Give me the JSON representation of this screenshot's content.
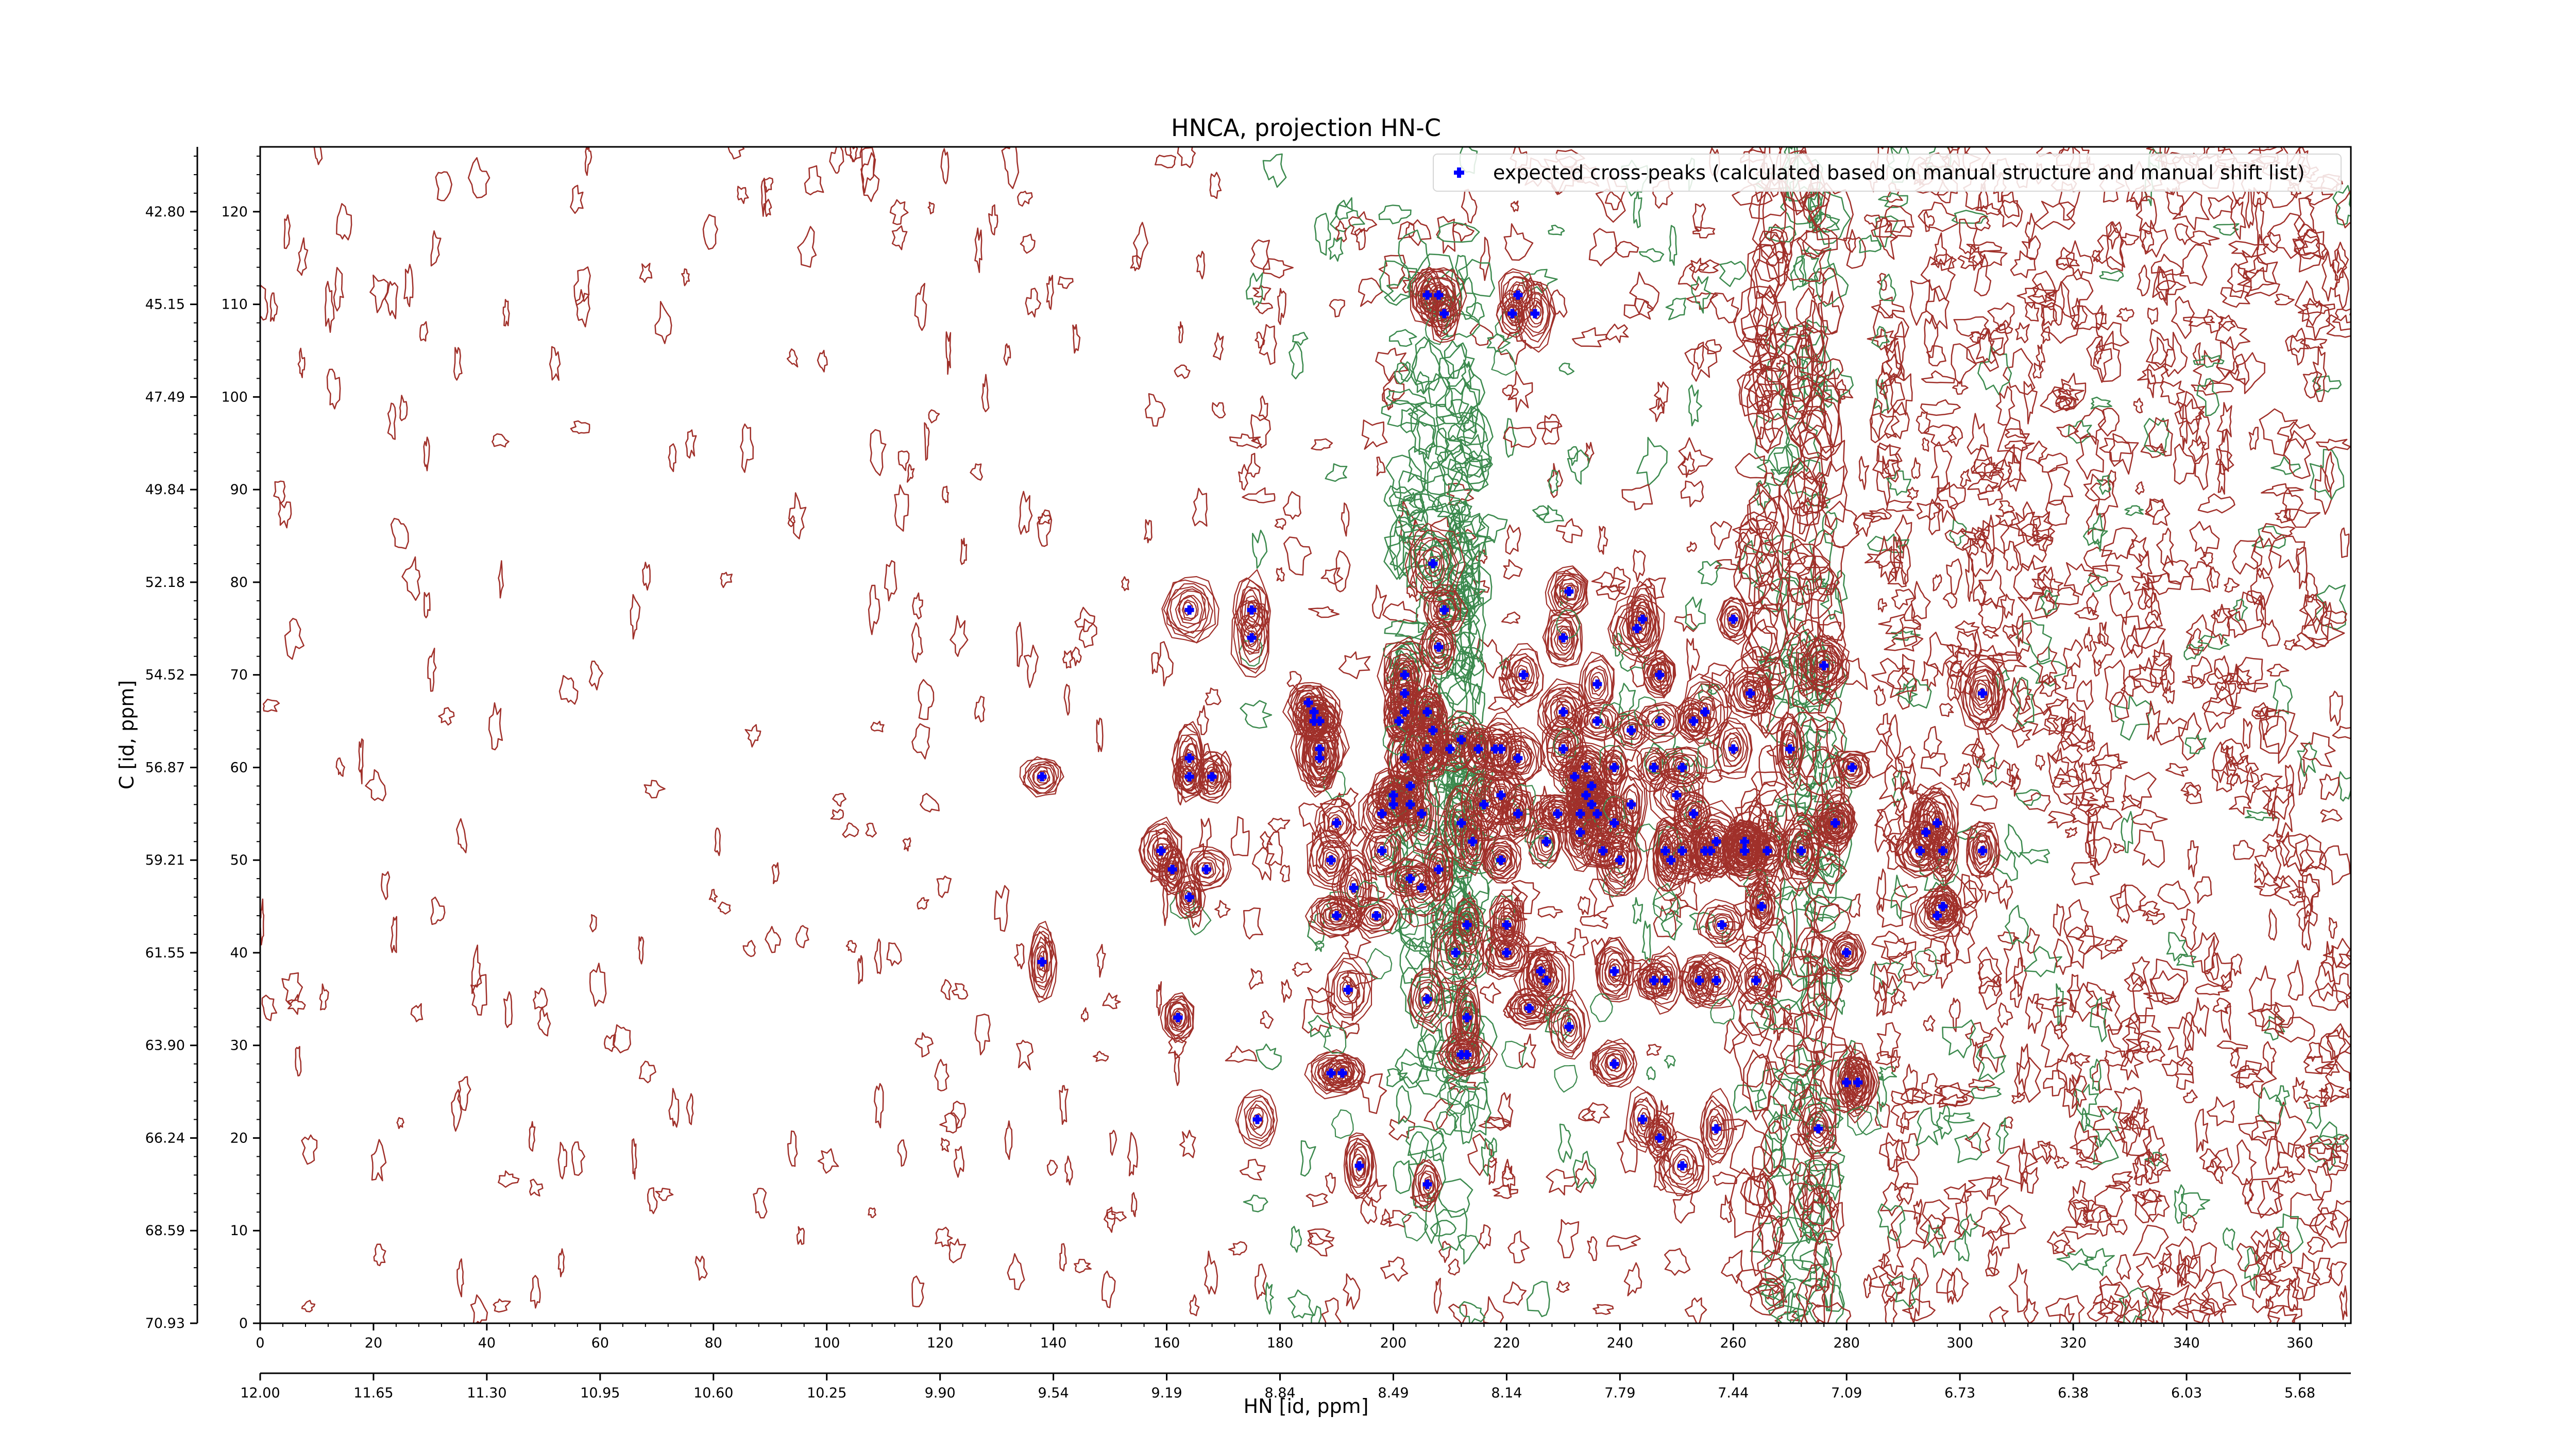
{
  "chart_data": {
    "type": "scatter",
    "title": "HNCA, projection HN-C",
    "xlabel": "HN [id, ppm]",
    "ylabel": "C [id, ppm]",
    "x_index_ticks": [
      "0",
      "20",
      "40",
      "60",
      "80",
      "100",
      "120",
      "140",
      "160",
      "180",
      "200",
      "220",
      "240",
      "260",
      "280",
      "300",
      "320",
      "340",
      "360"
    ],
    "x_ppm_ticks": [
      "12.00",
      "11.65",
      "11.30",
      "10.95",
      "10.60",
      "10.25",
      "9.90",
      "9.54",
      "9.19",
      "8.84",
      "8.49",
      "8.14",
      "7.79",
      "7.44",
      "7.09",
      "6.73",
      "6.38",
      "6.03",
      "5.68"
    ],
    "y_index_ticks": [
      "0",
      "10",
      "20",
      "30",
      "40",
      "50",
      "60",
      "70",
      "80",
      "90",
      "100",
      "110",
      "120"
    ],
    "y_ppm_ticks": [
      "70.93",
      "68.59",
      "66.24",
      "63.90",
      "61.55",
      "59.21",
      "56.87",
      "54.52",
      "52.18",
      "49.84",
      "47.49",
      "45.15",
      "42.80"
    ],
    "xlim_index": [
      0,
      369
    ],
    "ylim_index": [
      0,
      127
    ],
    "legend": {
      "placement": "top-right",
      "entries": [
        "expected cross-peaks (calculated based on manual structure and manual shift list)"
      ]
    },
    "grid": false,
    "colors": {
      "positive_contours": "#a0302a",
      "negative_contours": "#3c8a4e",
      "markers": "#0000ff"
    },
    "series": [
      {
        "name": "expected cross-peaks (calculated based on manual structure and manual shift list)",
        "points": [
          [
            138,
            59
          ],
          [
            138,
            39
          ],
          [
            159,
            51
          ],
          [
            161,
            49
          ],
          [
            164,
            61
          ],
          [
            164,
            59
          ],
          [
            167,
            49
          ],
          [
            162,
            33
          ],
          [
            164,
            46
          ],
          [
            168,
            59
          ],
          [
            164,
            77
          ],
          [
            175,
            77
          ],
          [
            175,
            74
          ],
          [
            176,
            22
          ],
          [
            185,
            67
          ],
          [
            186,
            66
          ],
          [
            187,
            65
          ],
          [
            186,
            65
          ],
          [
            187,
            62
          ],
          [
            187,
            61
          ],
          [
            191,
            27
          ],
          [
            189,
            27
          ],
          [
            189,
            50
          ],
          [
            190,
            44
          ],
          [
            190,
            54
          ],
          [
            192,
            36
          ],
          [
            194,
            17
          ],
          [
            193,
            47
          ],
          [
            197,
            44
          ],
          [
            198,
            55
          ],
          [
            198,
            51
          ],
          [
            200,
            56
          ],
          [
            200,
            57
          ],
          [
            202,
            61
          ],
          [
            201,
            65
          ],
          [
            202,
            66
          ],
          [
            202,
            68
          ],
          [
            202,
            70
          ],
          [
            203,
            56
          ],
          [
            203,
            58
          ],
          [
            203,
            48
          ],
          [
            206,
            62
          ],
          [
            206,
            66
          ],
          [
            206,
            35
          ],
          [
            205,
            47
          ],
          [
            205,
            55
          ],
          [
            206,
            62
          ],
          [
            208,
            49
          ],
          [
            207,
            64
          ],
          [
            207,
            82
          ],
          [
            208,
            73
          ],
          [
            210,
            62
          ],
          [
            211,
            40
          ],
          [
            212,
            63
          ],
          [
            212,
            54
          ],
          [
            213,
            33
          ],
          [
            213,
            29
          ],
          [
            213,
            43
          ],
          [
            214,
            52
          ],
          [
            206,
            15
          ],
          [
            209,
            77
          ],
          [
            206,
            111
          ],
          [
            208,
            111
          ],
          [
            212,
            29
          ],
          [
            215,
            62
          ],
          [
            216,
            56
          ],
          [
            218,
            62
          ],
          [
            219,
            62
          ],
          [
            219,
            57
          ],
          [
            219,
            50
          ],
          [
            220,
            43
          ],
          [
            220,
            40
          ],
          [
            222,
            61
          ],
          [
            224,
            34
          ],
          [
            222,
            55
          ],
          [
            223,
            70
          ],
          [
            226,
            38
          ],
          [
            227,
            37
          ],
          [
            227,
            52
          ],
          [
            229,
            55
          ],
          [
            230,
            62
          ],
          [
            230,
            66
          ],
          [
            230,
            74
          ],
          [
            231,
            32
          ],
          [
            231,
            79
          ],
          [
            232,
            59
          ],
          [
            233,
            53
          ],
          [
            233,
            55
          ],
          [
            234,
            60
          ],
          [
            234,
            57
          ],
          [
            235,
            56
          ],
          [
            235,
            58
          ],
          [
            236,
            65
          ],
          [
            236,
            69
          ],
          [
            236,
            55
          ],
          [
            237,
            51
          ],
          [
            239,
            28
          ],
          [
            239,
            38
          ],
          [
            239,
            54
          ],
          [
            239,
            60
          ],
          [
            240,
            50
          ],
          [
            242,
            64
          ],
          [
            242,
            56
          ],
          [
            243,
            75
          ],
          [
            244,
            76
          ],
          [
            244,
            22
          ],
          [
            246,
            37
          ],
          [
            246,
            60
          ],
          [
            247,
            20
          ],
          [
            247,
            70
          ],
          [
            247,
            65
          ],
          [
            248,
            37
          ],
          [
            248,
            51
          ],
          [
            249,
            50
          ],
          [
            250,
            57
          ],
          [
            251,
            17
          ],
          [
            251,
            51
          ],
          [
            251,
            60
          ],
          [
            253,
            55
          ],
          [
            254,
            37
          ],
          [
            255,
            66
          ],
          [
            255,
            51
          ],
          [
            256,
            51
          ],
          [
            257,
            52
          ],
          [
            257,
            37
          ],
          [
            257,
            21
          ],
          [
            258,
            43
          ],
          [
            260,
            62
          ],
          [
            260,
            76
          ],
          [
            262,
            51
          ],
          [
            262,
            51
          ],
          [
            253,
            65
          ],
          [
            222,
            111
          ],
          [
            221,
            109
          ],
          [
            225,
            109
          ],
          [
            262,
            52
          ],
          [
            263,
            68
          ],
          [
            264,
            37
          ],
          [
            265,
            45
          ],
          [
            266,
            51
          ],
          [
            262,
            51
          ],
          [
            270,
            62
          ],
          [
            272,
            51
          ],
          [
            275,
            21
          ],
          [
            276,
            71
          ],
          [
            278,
            54
          ],
          [
            278,
            54
          ],
          [
            280,
            40
          ],
          [
            280,
            26
          ],
          [
            282,
            26
          ],
          [
            282,
            26
          ],
          [
            281,
            60
          ],
          [
            293,
            51
          ],
          [
            294,
            53
          ],
          [
            296,
            54
          ],
          [
            297,
            51
          ],
          [
            297,
            45
          ],
          [
            296,
            44
          ],
          [
            304,
            51
          ],
          [
            304,
            68
          ],
          [
            209,
            109
          ]
        ]
      }
    ]
  }
}
